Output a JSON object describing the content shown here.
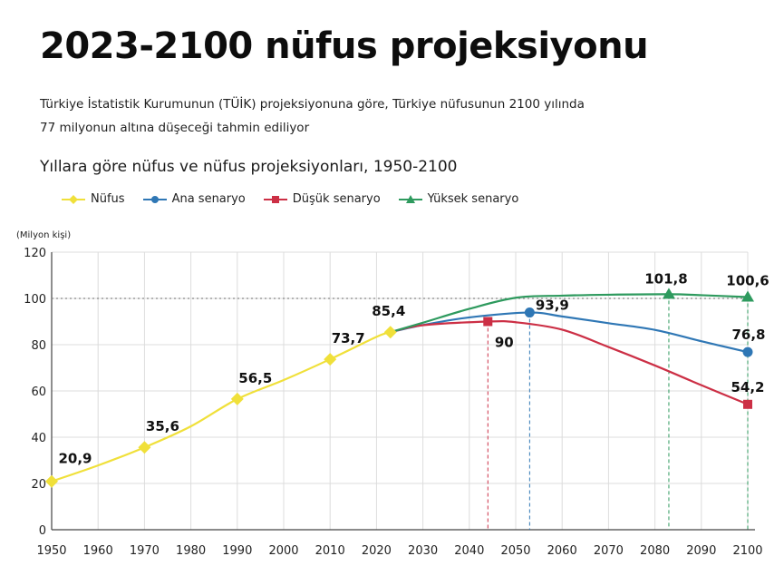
{
  "header": {
    "title": "2023-2100 nüfus projeksiyonu",
    "subtitle_line1": "Türkiye İstatistik Kurumunun (TÜİK) projeksiyonuna göre, Türkiye nüfusunun 2100 yılında",
    "subtitle_line2": "77 milyonun altına düşeceği tahmin ediliyor"
  },
  "chart_data": {
    "type": "line",
    "title": "Yıllara göre nüfus ve nüfus projeksiyonları, 1950-2100",
    "ylabel": "(Milyon kişi)",
    "xlabel": "",
    "xlim": [
      1950,
      2100
    ],
    "ylim": [
      0,
      120
    ],
    "x_ticks": [
      "1950",
      "1960",
      "1970",
      "1980",
      "1990",
      "2000",
      "2010",
      "2020",
      "2030",
      "2040",
      "2050",
      "2060",
      "2070",
      "2080",
      "2090",
      "2100"
    ],
    "y_ticks": [
      "0",
      "20",
      "40",
      "60",
      "80",
      "100",
      "120"
    ],
    "grid": true,
    "legend_position": "top-left",
    "reference_line": 100,
    "series": [
      {
        "name": "Nüfus",
        "color": "#f0e03a",
        "marker": "diamond",
        "points": [
          [
            1950,
            20.9
          ],
          [
            1960,
            27.8
          ],
          [
            1970,
            35.6
          ],
          [
            1980,
            44.7
          ],
          [
            1990,
            56.5
          ],
          [
            2000,
            64.7
          ],
          [
            2010,
            73.7
          ],
          [
            2020,
            83.4
          ],
          [
            2023,
            85.4
          ]
        ],
        "labels": [
          [
            1950,
            "20,9"
          ],
          [
            1970,
            "35,6"
          ],
          [
            1990,
            "56,5"
          ],
          [
            2010,
            "73,7"
          ],
          [
            2023,
            "85,4"
          ]
        ]
      },
      {
        "name": "Ana senaryo",
        "color": "#2f77b5",
        "marker": "circle",
        "points": [
          [
            2023,
            85.4
          ],
          [
            2030,
            88.5
          ],
          [
            2040,
            91.8
          ],
          [
            2053,
            93.9
          ],
          [
            2060,
            92.2
          ],
          [
            2070,
            89.3
          ],
          [
            2080,
            86.4
          ],
          [
            2090,
            81.5
          ],
          [
            2100,
            76.8
          ]
        ],
        "labels": [
          [
            2053,
            "93,9"
          ],
          [
            2100,
            "76,8"
          ]
        ]
      },
      {
        "name": "Düşük senaryo",
        "color": "#cc2f45",
        "marker": "square",
        "points": [
          [
            2023,
            85.4
          ],
          [
            2030,
            88.4
          ],
          [
            2044,
            90
          ],
          [
            2050,
            89.7
          ],
          [
            2060,
            86.5
          ],
          [
            2070,
            79
          ],
          [
            2080,
            71
          ],
          [
            2090,
            62.5
          ],
          [
            2100,
            54.2
          ]
        ],
        "labels": [
          [
            2044,
            "90"
          ],
          [
            2100,
            "54,2"
          ]
        ]
      },
      {
        "name": "Yüksek senaryo",
        "color": "#2e9a5e",
        "marker": "triangle",
        "points": [
          [
            2023,
            85.4
          ],
          [
            2030,
            89.5
          ],
          [
            2040,
            95.5
          ],
          [
            2050,
            100.3
          ],
          [
            2060,
            101.2
          ],
          [
            2070,
            101.6
          ],
          [
            2083,
            101.8
          ],
          [
            2090,
            101.4
          ],
          [
            2100,
            100.6
          ]
        ],
        "labels": [
          [
            2083,
            "101,8"
          ],
          [
            2100,
            "100,6"
          ]
        ]
      }
    ],
    "drop_lines": [
      {
        "x": 2044,
        "y": 90,
        "color": "#cc2f45"
      },
      {
        "x": 2053,
        "y": 93.9,
        "color": "#2f77b5"
      },
      {
        "x": 2083,
        "y": 101.8,
        "color": "#2e9a5e"
      },
      {
        "x": 2100,
        "y": 100.6,
        "color": "#2e9a5e"
      }
    ]
  }
}
